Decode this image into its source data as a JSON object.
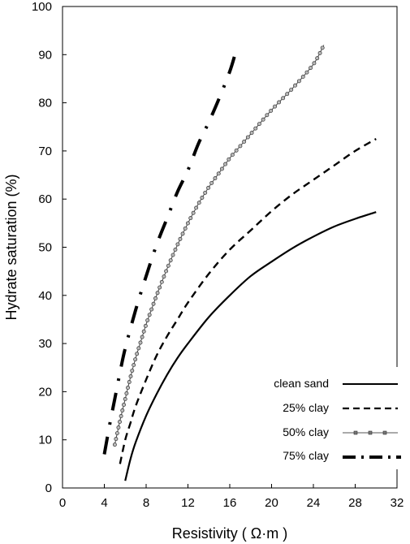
{
  "chart_data": {
    "type": "line",
    "title": "",
    "xlabel": "Resistivity ( Ω·m )",
    "ylabel": "Hydrate saturation (%)",
    "xlim": [
      0,
      32
    ],
    "ylim": [
      0,
      100
    ],
    "xticks": [
      0,
      4,
      8,
      12,
      16,
      20,
      24,
      28,
      32
    ],
    "yticks": [
      0,
      10,
      20,
      30,
      40,
      50,
      60,
      70,
      80,
      90,
      100
    ],
    "xtick_labels": [
      "0",
      "4",
      "8",
      "12",
      "16",
      "20",
      "24",
      "28",
      "32"
    ],
    "ytick_labels": [
      "0",
      "10",
      "20",
      "30",
      "40",
      "50",
      "60",
      "70",
      "80",
      "90",
      "100"
    ],
    "grid": false,
    "legend_position": "bottom-right",
    "series": [
      {
        "name": "clean sand",
        "style": "solid",
        "color": "#000000",
        "x": [
          6.0,
          6.5,
          7.0,
          8.0,
          9.0,
          10.0,
          11.0,
          12.0,
          14.0,
          16.0,
          18.0,
          20.0,
          22.0,
          24.0,
          26.0,
          28.0,
          30.0
        ],
        "y": [
          1.5,
          6.0,
          9.5,
          15.0,
          19.5,
          23.5,
          27.0,
          30.0,
          35.5,
          40.0,
          44.0,
          47.0,
          49.8,
          52.2,
          54.3,
          55.9,
          57.3
        ]
      },
      {
        "name": "25% clay",
        "style": "dashed",
        "color": "#000000",
        "x": [
          5.5,
          6.0,
          6.5,
          7.0,
          8.0,
          9.0,
          10.0,
          11.0,
          12.0,
          14.0,
          16.0,
          18.0,
          20.0,
          22.0,
          24.0,
          26.0,
          28.0,
          30.0
        ],
        "y": [
          5.0,
          10.0,
          13.5,
          17.0,
          22.5,
          27.5,
          31.5,
          35.0,
          38.5,
          44.5,
          49.5,
          53.5,
          57.5,
          61.0,
          64.0,
          67.0,
          70.0,
          72.5
        ]
      },
      {
        "name": "50% clay",
        "style": "solid-with-markers",
        "color": "#000000",
        "x": [
          5.0,
          5.5,
          6.0,
          6.5,
          7.0,
          7.5,
          8.0,
          8.5,
          9.0,
          10.0,
          11.0,
          12.0,
          13.0,
          14.0,
          15.0,
          16.0,
          17.0,
          18.0,
          20.0,
          22.0,
          24.0,
          25.0
        ],
        "y": [
          9.0,
          14.0,
          18.5,
          23.0,
          27.0,
          30.5,
          34.0,
          37.0,
          40.0,
          45.5,
          50.5,
          55.0,
          59.0,
          62.5,
          65.5,
          68.5,
          71.0,
          73.5,
          78.5,
          83.0,
          88.0,
          92.0
        ]
      },
      {
        "name": "75% clay",
        "style": "dash-dot",
        "color": "#000000",
        "x": [
          4.0,
          4.5,
          5.0,
          5.5,
          6.0,
          7.0,
          8.0,
          9.0,
          10.0,
          11.0,
          12.0,
          13.0,
          14.0,
          15.0,
          16.0,
          16.5
        ],
        "y": [
          7.0,
          13.0,
          18.5,
          24.0,
          29.0,
          37.0,
          44.0,
          50.5,
          56.0,
          61.5,
          66.0,
          71.5,
          76.0,
          81.0,
          86.5,
          90.0
        ]
      }
    ]
  }
}
